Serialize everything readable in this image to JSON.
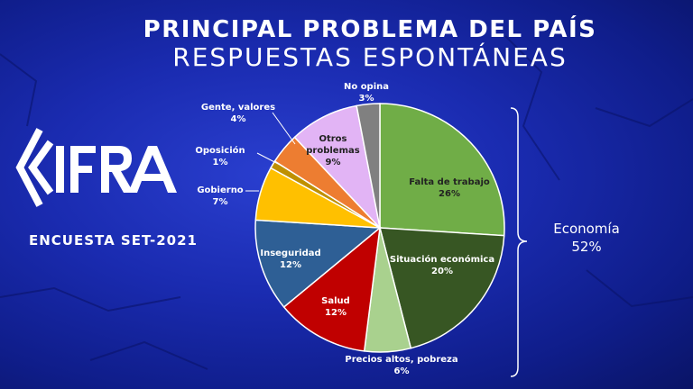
{
  "header": {
    "title": "PRINCIPAL PROBLEMA DEL PAÍS",
    "subtitle": "RESPUESTAS ESPONTÁNEAS"
  },
  "brand": {
    "logo_text": "CIFRA",
    "survey": "ENCUESTA SET-2021"
  },
  "group": {
    "label": "Economía",
    "value": "52%"
  },
  "chart_data": {
    "type": "pie",
    "title": "PRINCIPAL PROBLEMA DEL PAÍS",
    "subtitle": "RESPUESTAS ESPONTÁNEAS",
    "slices": [
      {
        "label": "Falta de trabajo",
        "value": 26,
        "display": "26%",
        "color": "#70ad47"
      },
      {
        "label": "Situación económica",
        "value": 20,
        "display": "20%",
        "color": "#375623"
      },
      {
        "label": "Precios altos, pobreza",
        "value": 6,
        "display": "6%",
        "color": "#a9d18e"
      },
      {
        "label": "Salud",
        "value": 12,
        "display": "12%",
        "color": "#c00000"
      },
      {
        "label": "Inseguridad",
        "value": 12,
        "display": "12%",
        "color": "#2e5f95"
      },
      {
        "label": "Gobierno",
        "value": 7,
        "display": "7%",
        "color": "#ffc000"
      },
      {
        "label": "Oposición",
        "value": 1,
        "display": "1%",
        "color": "#bf9000"
      },
      {
        "label": "Gente, valores",
        "value": 4,
        "display": "4%",
        "color": "#ed7d31"
      },
      {
        "label": "Otros problemas",
        "value": 9,
        "display": "9%",
        "color": "#e2b4f5"
      },
      {
        "label": "No opina",
        "value": 3,
        "display": "3%",
        "color": "#808080"
      }
    ],
    "bracket_group": {
      "label": "Economía",
      "value": "52%",
      "members": [
        "Falta de trabajo",
        "Situación económica",
        "Precios altos, pobreza"
      ]
    }
  }
}
